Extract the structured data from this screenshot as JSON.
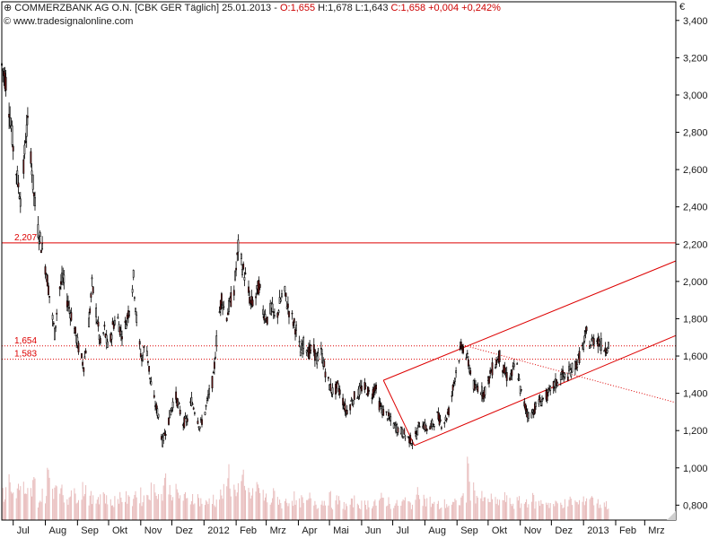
{
  "header": {
    "instrument": "COMMERZBANK AG O.N. [CBK GER  Täglich] 25.01.2013 -",
    "open": "O:1,655",
    "high": "H:1,678",
    "low": "L:1,643",
    "close": "C:1,658",
    "change": "+0,004",
    "change_pct": "+0,242%",
    "source": "www.tradesignalonline.com",
    "currency": "€"
  },
  "colors": {
    "background": "#ffffff",
    "axis": "#000000",
    "grid": "#e6e6e6",
    "candle_up": "#ffffff",
    "candle_down": "#8b1a1a",
    "trendline": "#dd0000",
    "volume": "#e8bcbc"
  },
  "chart_data": {
    "type": "candlestick",
    "ylim": [
      0.72,
      3.5
    ],
    "y_ticks": [
      0.8,
      1.0,
      1.2,
      1.4,
      1.6,
      1.8,
      2.0,
      2.2,
      2.4,
      2.6,
      2.8,
      3.0,
      3.2,
      3.4
    ],
    "y_tick_labels": [
      "0,800",
      "1,000",
      "1,200",
      "1,400",
      "1,600",
      "1,800",
      "2,000",
      "2,200",
      "2,400",
      "2,600",
      "2,800",
      "3,000",
      "3,200",
      "3,400"
    ],
    "x_range": [
      "2011-06-20",
      "2013-03-31"
    ],
    "x_ticks": [
      {
        "label": "Jul",
        "date": "2011-07-01"
      },
      {
        "label": "Aug",
        "date": "2011-08-01"
      },
      {
        "label": "Sep",
        "date": "2011-09-01"
      },
      {
        "label": "Okt",
        "date": "2011-10-01"
      },
      {
        "label": "Nov",
        "date": "2011-11-01"
      },
      {
        "label": "Dez",
        "date": "2011-12-01"
      },
      {
        "label": "2012",
        "date": "2012-01-01"
      },
      {
        "label": "Feb",
        "date": "2012-02-01"
      },
      {
        "label": "Mrz",
        "date": "2012-03-01"
      },
      {
        "label": "Apr",
        "date": "2012-04-01"
      },
      {
        "label": "Mai",
        "date": "2012-05-01"
      },
      {
        "label": "Jun",
        "date": "2012-06-01"
      },
      {
        "label": "Jul",
        "date": "2012-07-01"
      },
      {
        "label": "Aug",
        "date": "2012-08-01"
      },
      {
        "label": "Sep",
        "date": "2012-09-01"
      },
      {
        "label": "Okt",
        "date": "2012-10-01"
      },
      {
        "label": "Nov",
        "date": "2012-11-01"
      },
      {
        "label": "Dez",
        "date": "2012-12-01"
      },
      {
        "label": "2013",
        "date": "2013-01-01"
      },
      {
        "label": "Feb",
        "date": "2013-02-01"
      },
      {
        "label": "Mrz",
        "date": "2013-03-01"
      }
    ],
    "price_path": [
      [
        "2011-06-20",
        3.16
      ],
      [
        "2011-06-25",
        3.05
      ],
      [
        "2011-07-01",
        2.72
      ],
      [
        "2011-07-05",
        2.55
      ],
      [
        "2011-07-09",
        2.42
      ],
      [
        "2011-07-13",
        2.78
      ],
      [
        "2011-07-16",
        2.86
      ],
      [
        "2011-07-20",
        2.52
      ],
      [
        "2011-07-24",
        2.3
      ],
      [
        "2011-07-28",
        2.2
      ],
      [
        "2011-08-02",
        2.05
      ],
      [
        "2011-08-06",
        1.88
      ],
      [
        "2011-08-10",
        1.72
      ],
      [
        "2011-08-14",
        1.95
      ],
      [
        "2011-08-18",
        2.02
      ],
      [
        "2011-08-22",
        1.9
      ],
      [
        "2011-08-26",
        1.82
      ],
      [
        "2011-08-30",
        1.72
      ],
      [
        "2011-09-03",
        1.62
      ],
      [
        "2011-09-07",
        1.55
      ],
      [
        "2011-09-11",
        1.72
      ],
      [
        "2011-09-15",
        1.98
      ],
      [
        "2011-09-19",
        1.84
      ],
      [
        "2011-09-23",
        1.66
      ],
      [
        "2011-09-27",
        1.74
      ],
      [
        "2011-10-01",
        1.62
      ],
      [
        "2011-10-05",
        1.76
      ],
      [
        "2011-10-09",
        1.82
      ],
      [
        "2011-10-13",
        1.72
      ],
      [
        "2011-10-17",
        1.76
      ],
      [
        "2011-10-21",
        1.86
      ],
      [
        "2011-10-25",
        2.02
      ],
      [
        "2011-10-29",
        1.72
      ],
      [
        "2011-11-02",
        1.58
      ],
      [
        "2011-11-06",
        1.68
      ],
      [
        "2011-11-10",
        1.48
      ],
      [
        "2011-11-14",
        1.36
      ],
      [
        "2011-11-18",
        1.28
      ],
      [
        "2011-11-22",
        1.14
      ],
      [
        "2011-11-26",
        1.22
      ],
      [
        "2011-11-30",
        1.3
      ],
      [
        "2011-12-04",
        1.4
      ],
      [
        "2011-12-08",
        1.32
      ],
      [
        "2011-12-12",
        1.24
      ],
      [
        "2011-12-16",
        1.26
      ],
      [
        "2011-12-20",
        1.36
      ],
      [
        "2011-12-24",
        1.3
      ],
      [
        "2011-12-28",
        1.22
      ],
      [
        "2012-01-02",
        1.3
      ],
      [
        "2012-01-06",
        1.4
      ],
      [
        "2012-01-10",
        1.48
      ],
      [
        "2012-01-14",
        1.75
      ],
      [
        "2012-01-18",
        1.92
      ],
      [
        "2012-01-22",
        1.8
      ],
      [
        "2012-01-26",
        1.88
      ],
      [
        "2012-01-30",
        1.96
      ],
      [
        "2012-02-03",
        2.18
      ],
      [
        "2012-02-07",
        2.08
      ],
      [
        "2012-02-11",
        2.0
      ],
      [
        "2012-02-15",
        1.88
      ],
      [
        "2012-02-19",
        1.9
      ],
      [
        "2012-02-23",
        1.98
      ],
      [
        "2012-02-27",
        1.84
      ],
      [
        "2012-03-02",
        1.8
      ],
      [
        "2012-03-06",
        1.86
      ],
      [
        "2012-03-10",
        1.78
      ],
      [
        "2012-03-14",
        1.88
      ],
      [
        "2012-03-18",
        1.96
      ],
      [
        "2012-03-22",
        1.86
      ],
      [
        "2012-03-26",
        1.8
      ],
      [
        "2012-03-30",
        1.74
      ],
      [
        "2012-04-03",
        1.62
      ],
      [
        "2012-04-07",
        1.68
      ],
      [
        "2012-04-11",
        1.62
      ],
      [
        "2012-04-15",
        1.64
      ],
      [
        "2012-04-19",
        1.58
      ],
      [
        "2012-04-23",
        1.62
      ],
      [
        "2012-04-27",
        1.52
      ],
      [
        "2012-05-01",
        1.44
      ],
      [
        "2012-05-05",
        1.4
      ],
      [
        "2012-05-09",
        1.44
      ],
      [
        "2012-05-13",
        1.38
      ],
      [
        "2012-05-17",
        1.3
      ],
      [
        "2012-05-21",
        1.34
      ],
      [
        "2012-05-25",
        1.38
      ],
      [
        "2012-05-29",
        1.4
      ],
      [
        "2012-06-02",
        1.44
      ],
      [
        "2012-06-06",
        1.42
      ],
      [
        "2012-06-10",
        1.38
      ],
      [
        "2012-06-14",
        1.44
      ],
      [
        "2012-06-18",
        1.34
      ],
      [
        "2012-06-22",
        1.3
      ],
      [
        "2012-06-26",
        1.28
      ],
      [
        "2012-06-30",
        1.24
      ],
      [
        "2012-07-04",
        1.22
      ],
      [
        "2012-07-08",
        1.2
      ],
      [
        "2012-07-12",
        1.18
      ],
      [
        "2012-07-16",
        1.16
      ],
      [
        "2012-07-20",
        1.14
      ],
      [
        "2012-07-24",
        1.18
      ],
      [
        "2012-07-28",
        1.26
      ],
      [
        "2012-08-01",
        1.22
      ],
      [
        "2012-08-05",
        1.2
      ],
      [
        "2012-08-09",
        1.24
      ],
      [
        "2012-08-13",
        1.28
      ],
      [
        "2012-08-17",
        1.24
      ],
      [
        "2012-08-21",
        1.26
      ],
      [
        "2012-08-25",
        1.32
      ],
      [
        "2012-08-29",
        1.46
      ],
      [
        "2012-09-02",
        1.58
      ],
      [
        "2012-09-06",
        1.66
      ],
      [
        "2012-09-10",
        1.6
      ],
      [
        "2012-09-14",
        1.52
      ],
      [
        "2012-09-18",
        1.42
      ],
      [
        "2012-09-22",
        1.44
      ],
      [
        "2012-09-26",
        1.4
      ],
      [
        "2012-09-30",
        1.44
      ],
      [
        "2012-10-04",
        1.52
      ],
      [
        "2012-10-08",
        1.56
      ],
      [
        "2012-10-12",
        1.6
      ],
      [
        "2012-10-16",
        1.52
      ],
      [
        "2012-10-20",
        1.48
      ],
      [
        "2012-10-24",
        1.5
      ],
      [
        "2012-10-28",
        1.58
      ],
      [
        "2012-11-01",
        1.42
      ],
      [
        "2012-11-05",
        1.34
      ],
      [
        "2012-11-09",
        1.28
      ],
      [
        "2012-11-13",
        1.3
      ],
      [
        "2012-11-17",
        1.34
      ],
      [
        "2012-11-21",
        1.36
      ],
      [
        "2012-11-25",
        1.38
      ],
      [
        "2012-11-29",
        1.4
      ],
      [
        "2012-12-03",
        1.44
      ],
      [
        "2012-12-07",
        1.46
      ],
      [
        "2012-12-11",
        1.5
      ],
      [
        "2012-12-15",
        1.48
      ],
      [
        "2012-12-19",
        1.52
      ],
      [
        "2012-12-23",
        1.54
      ],
      [
        "2012-12-27",
        1.58
      ],
      [
        "2012-12-31",
        1.64
      ],
      [
        "2013-01-04",
        1.72
      ],
      [
        "2013-01-08",
        1.66
      ],
      [
        "2013-01-12",
        1.7
      ],
      [
        "2013-01-16",
        1.68
      ],
      [
        "2013-01-20",
        1.64
      ],
      [
        "2013-01-25",
        1.658
      ]
    ],
    "volume_relative": [
      0.45,
      0.7,
      0.5,
      0.55,
      0.6,
      0.4,
      0.5,
      0.65,
      0.35,
      0.45,
      0.8,
      0.6,
      0.75,
      0.5,
      0.4,
      0.55,
      0.45,
      0.5,
      0.6,
      0.4,
      0.35,
      0.45,
      0.5,
      0.4,
      0.3,
      0.35,
      0.45,
      0.4,
      0.35,
      0.5,
      0.45,
      0.4,
      0.5,
      0.55,
      0.6,
      0.45,
      0.7,
      0.55,
      0.5,
      0.45,
      0.4,
      0.35,
      0.45,
      0.4,
      0.35,
      0.3,
      0.4,
      0.35,
      0.45,
      0.5,
      0.85,
      0.55,
      0.6,
      0.7,
      0.5,
      0.45,
      0.65,
      0.5,
      0.4,
      0.35,
      0.45,
      0.4,
      0.3,
      0.35,
      0.4,
      0.3,
      0.35,
      0.3,
      0.4,
      0.35,
      0.3,
      0.35,
      0.4,
      0.3,
      0.35,
      0.3,
      0.25,
      0.3,
      0.35,
      0.3,
      0.28,
      0.3,
      0.35,
      0.3,
      0.4,
      0.35,
      0.3,
      0.28,
      0.3,
      0.35,
      0.3,
      0.35,
      0.6,
      0.4,
      0.35,
      0.3,
      0.28,
      0.25,
      0.3,
      0.28,
      0.3,
      0.35,
      0.45,
      0.9,
      0.55,
      0.45,
      0.4,
      0.35,
      0.38,
      0.32,
      0.35,
      0.4,
      0.35,
      0.3,
      0.33,
      0.3,
      0.35,
      0.38,
      0.3,
      0.32,
      0.35,
      0.3,
      0.28,
      0.3,
      0.32,
      0.3,
      0.35,
      0.3,
      0.33,
      0.4,
      0.45,
      0.35,
      0.3,
      0.3,
      0.28
    ],
    "levels": [
      {
        "label": "2,207",
        "value": 2.207,
        "style": "solid"
      },
      {
        "label": "1,654",
        "value": 1.654,
        "style": "dotted"
      },
      {
        "label": "1,583",
        "value": 1.583,
        "style": "dotted"
      }
    ],
    "trendlines": [
      {
        "from": [
          "2012-06-22",
          1.47
        ],
        "to": [
          "2013-03-31",
          2.11
        ],
        "style": "solid"
      },
      {
        "from": [
          "2012-07-22",
          1.12
        ],
        "to": [
          "2013-03-31",
          1.71
        ],
        "style": "solid"
      },
      {
        "from": [
          "2012-06-22",
          1.47
        ],
        "to": [
          "2012-07-22",
          1.12
        ],
        "style": "solid"
      },
      {
        "from": [
          "2012-09-06",
          1.66
        ],
        "to": [
          "2013-03-31",
          1.35
        ],
        "style": "dotted"
      }
    ]
  }
}
